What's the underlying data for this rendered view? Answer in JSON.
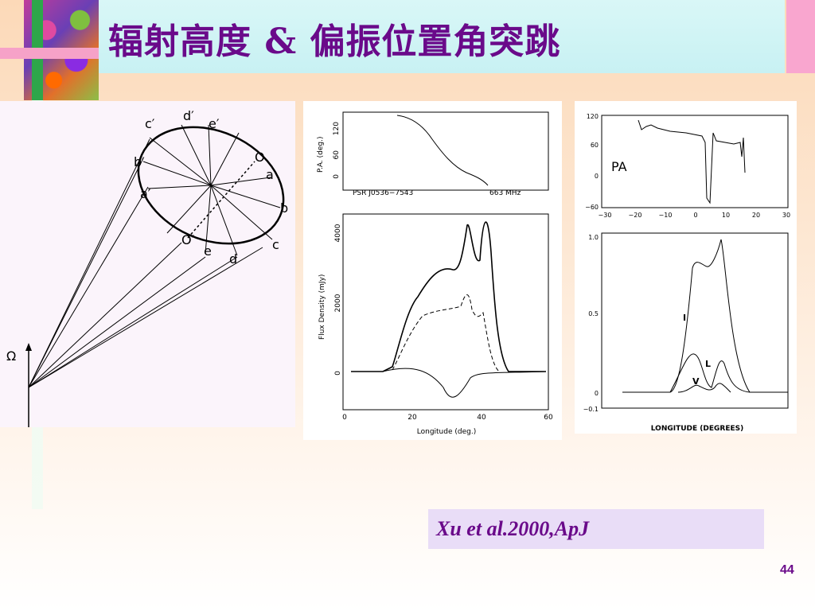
{
  "slide": {
    "title": "辐射高度 & 偏振位置角突跳",
    "citation": "Xu et al.2000,ApJ",
    "page_number": "44"
  },
  "diagram": {
    "omega_label": "Ω",
    "labels": [
      "c′",
      "d′",
      "e′",
      "b′",
      "a′",
      "O",
      "a",
      "b",
      "c",
      "d",
      "e",
      "O′"
    ]
  },
  "middle_figure": {
    "pa_ylabel": "P.A. (deg.)",
    "pa_ticks": [
      "120",
      "60",
      "0"
    ],
    "source_label": "PSR J0536−7543",
    "freq_label": "663 MHz",
    "flux_ylabel": "Flux Density (mJy)",
    "flux_ticks": [
      "4000",
      "2000",
      "0"
    ],
    "x_ticks": [
      "0",
      "20",
      "40",
      "60"
    ],
    "xlabel": "Longitude (deg.)"
  },
  "right_figure": {
    "pa_label": "PA",
    "pa_ticks": [
      "120",
      "60",
      "0",
      "−60"
    ],
    "pa_x_ticks": [
      "−30",
      "−20",
      "−10",
      "0",
      "10",
      "20",
      "30"
    ],
    "profile_ticks": [
      "1.0",
      "0.5",
      "0",
      "−0.1"
    ],
    "curve_labels": [
      "I",
      "L",
      "V"
    ],
    "xlabel": "LONGITUDE (DEGREES)"
  },
  "colors": {
    "title": "#6a0a8a",
    "accent_green": "#2ea64a",
    "accent_pink": "#f6a2c8"
  }
}
